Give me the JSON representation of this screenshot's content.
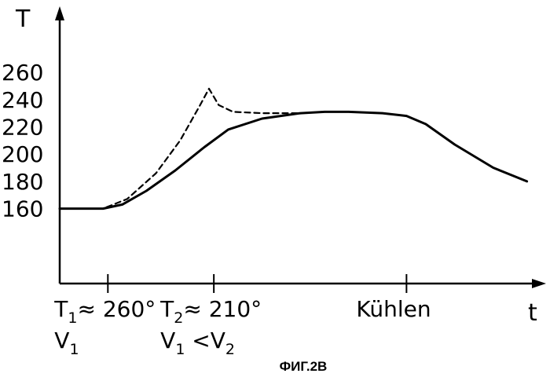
{
  "chart_data": {
    "type": "line",
    "ylabel": "T",
    "xlabel": "t",
    "y_ticks": [
      "160",
      "180",
      "200",
      "220",
      "240",
      "260"
    ],
    "ylim": [
      105,
      290
    ],
    "xlim": [
      0,
      10
    ],
    "x_markers": [
      {
        "x": 1.0,
        "line1_main": "T",
        "line1_sub": "1",
        "line1_rest": "≈ 260°",
        "line2_main": "V",
        "line2_sub": "1",
        "line2_rest": ""
      },
      {
        "x": 3.2,
        "line1_main": "T",
        "line1_sub": "2",
        "line1_rest": "≈ 210°",
        "line2_main": "V",
        "line2_sub": "1",
        "line2_rest": " <V"
      },
      {
        "x": 7.2,
        "line1_main": "Kühlen",
        "line1_sub": "",
        "line1_rest": "",
        "line2_main": "",
        "line2_sub": "",
        "line2_rest": ""
      }
    ],
    "x_marker2_line2_sub2": "2",
    "series": [
      {
        "style": "solid",
        "x": [
          0,
          0.9,
          1.3,
          1.8,
          2.4,
          3.0,
          3.5,
          4.2,
          5.0,
          5.5,
          6.0,
          6.7,
          7.2,
          7.6,
          8.2,
          9.0,
          9.7
        ],
        "y": [
          160,
          160,
          163,
          173,
          188,
          205,
          218,
          226,
          230,
          231,
          231,
          230,
          228,
          222,
          207,
          190,
          180
        ]
      },
      {
        "style": "dashed",
        "x": [
          0,
          0.9,
          1.4,
          2.0,
          2.5,
          2.9,
          3.1,
          3.3,
          3.6,
          4.2,
          5.0
        ],
        "y": [
          160,
          160,
          167,
          186,
          210,
          235,
          248,
          236,
          231,
          230,
          230
        ]
      }
    ],
    "grid": false,
    "caption": "ФИГ.2В"
  }
}
